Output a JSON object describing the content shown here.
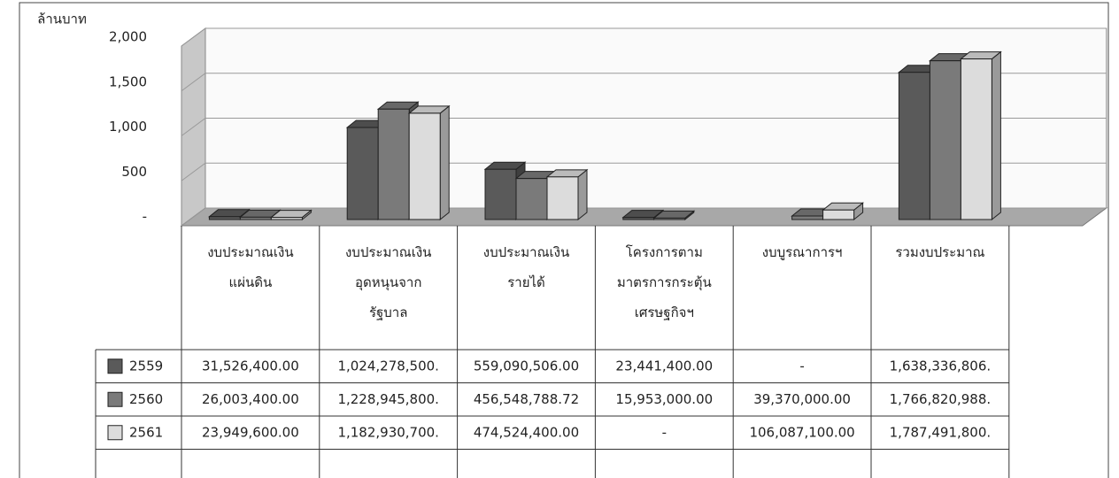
{
  "chart_data": {
    "type": "bar3d",
    "y_axis_label": "ล้านบาท",
    "categories": [
      "งบประมาณเงิน\nแผ่นดิน",
      "งบประมาณเงิน\nอุดหนุนจาก\nรัฐบาล",
      "งบประมาณเงิน\nรายได้",
      "โครงการตาม\nมาตรการกระตุ้น\nเศรษฐกิจฯ",
      "งบบูรณาการฯ",
      "รวมงบประมาณ"
    ],
    "series": [
      {
        "name": "2559",
        "color": "#5a5a5a",
        "values": [
          31.5264,
          1024.2785,
          559.090506,
          23.4414,
          null,
          1638.336806
        ],
        "value_labels": [
          "31,526,400.00",
          "1,024,278,500.",
          "559,090,506.00",
          "23,441,400.00",
          "-",
          "1,638,336,806."
        ]
      },
      {
        "name": "2560",
        "color": "#7a7a7a",
        "values": [
          26.0034,
          1228.9458,
          456.54878872,
          15.953,
          39.37,
          1766.820988
        ],
        "value_labels": [
          "26,003,400.00",
          "1,228,945,800.",
          "456,548,788.72",
          "15,953,000.00",
          "39,370,000.00",
          "1,766,820,988."
        ]
      },
      {
        "name": "2561",
        "color": "#dcdcdc",
        "values": [
          23.9496,
          1182.9307,
          474.5244,
          null,
          106.0871,
          1787.4918
        ],
        "value_labels": [
          "23,949,600.00",
          "1,182,930,700.",
          "474,524,400.00",
          "-",
          "106,087,100.00",
          "1,787,491,800."
        ]
      }
    ],
    "ylim": [
      0,
      2000
    ],
    "yticks": [
      {
        "value": 0,
        "label": "-"
      },
      500,
      {
        "value": 1000,
        "label": "1,000"
      },
      {
        "value": 1500,
        "label": "1,500"
      },
      {
        "value": 2000,
        "label": "2,000"
      }
    ],
    "grid": true
  }
}
